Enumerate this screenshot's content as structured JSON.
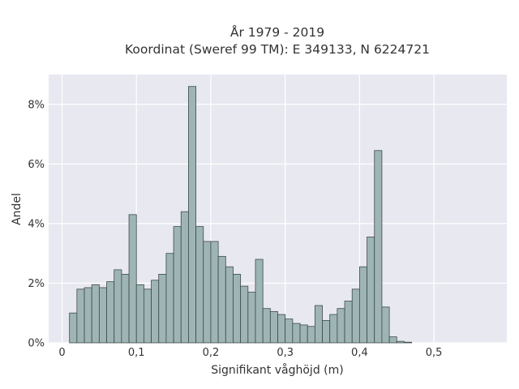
{
  "chart_data": {
    "type": "bar",
    "title": [
      "År 1979 - 2019",
      "Koordinat (Sweref 99 TM): E 349133, N 6224721"
    ],
    "xlabel": "Signifikant våghöjd (m)",
    "ylabel": "Andel",
    "xlim": [
      -0.018,
      0.598
    ],
    "ylim": [
      0,
      9.0
    ],
    "x_ticks": [
      0,
      0.1,
      0.2,
      0.3,
      0.4,
      0.5
    ],
    "x_tick_labels": [
      "0",
      "0,1",
      "0,2",
      "0,3",
      "0,4",
      "0,5"
    ],
    "y_ticks": [
      0,
      2,
      4,
      6,
      8
    ],
    "y_tick_labels": [
      "0%",
      "2%",
      "4%",
      "6%",
      "8%"
    ],
    "grid": true,
    "bin_start": 0.01,
    "bin_width": 0.01,
    "values": [
      1.0,
      1.8,
      1.85,
      1.95,
      1.85,
      2.05,
      2.45,
      2.3,
      4.3,
      1.95,
      1.8,
      2.1,
      2.3,
      3.0,
      3.9,
      4.4,
      8.6,
      3.9,
      3.4,
      3.4,
      2.9,
      2.55,
      2.3,
      1.9,
      1.7,
      2.8,
      1.15,
      1.05,
      0.95,
      0.8,
      0.65,
      0.6,
      0.55,
      1.25,
      0.75,
      0.95,
      1.15,
      1.4,
      1.8,
      2.55,
      3.55,
      6.45,
      1.2,
      0.2,
      0.05,
      0.02
    ]
  }
}
